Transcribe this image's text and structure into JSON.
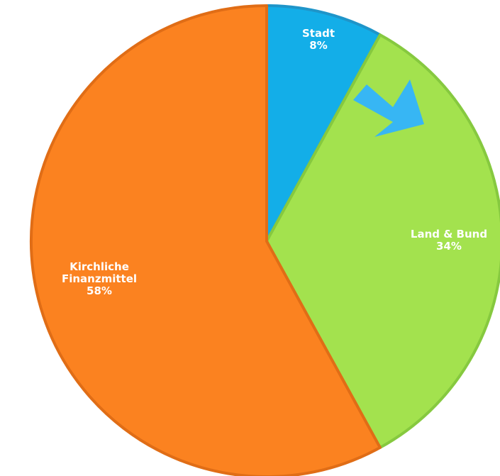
{
  "chart_data": {
    "type": "pie",
    "slices": [
      {
        "label": [
          "Stadt"
        ],
        "value": 8,
        "percent_label": "8%",
        "color": "#13aee8",
        "border": "#1f95c9"
      },
      {
        "label": [
          "Land & Bund"
        ],
        "value": 34,
        "percent_label": "34%",
        "color": "#a3e24e",
        "border": "#86c93f"
      },
      {
        "label": [
          "Kirchliche",
          "Finanzmittel"
        ],
        "value": 58,
        "percent_label": "58%",
        "color": "#fb8220",
        "border": "#e06d16"
      }
    ],
    "start_angle": "12 o'clock",
    "direction": "clockwise",
    "annotation": {
      "type": "arrow",
      "color": "#37b6f4",
      "direction": "down-right",
      "points_to": "Land & Bund"
    }
  }
}
